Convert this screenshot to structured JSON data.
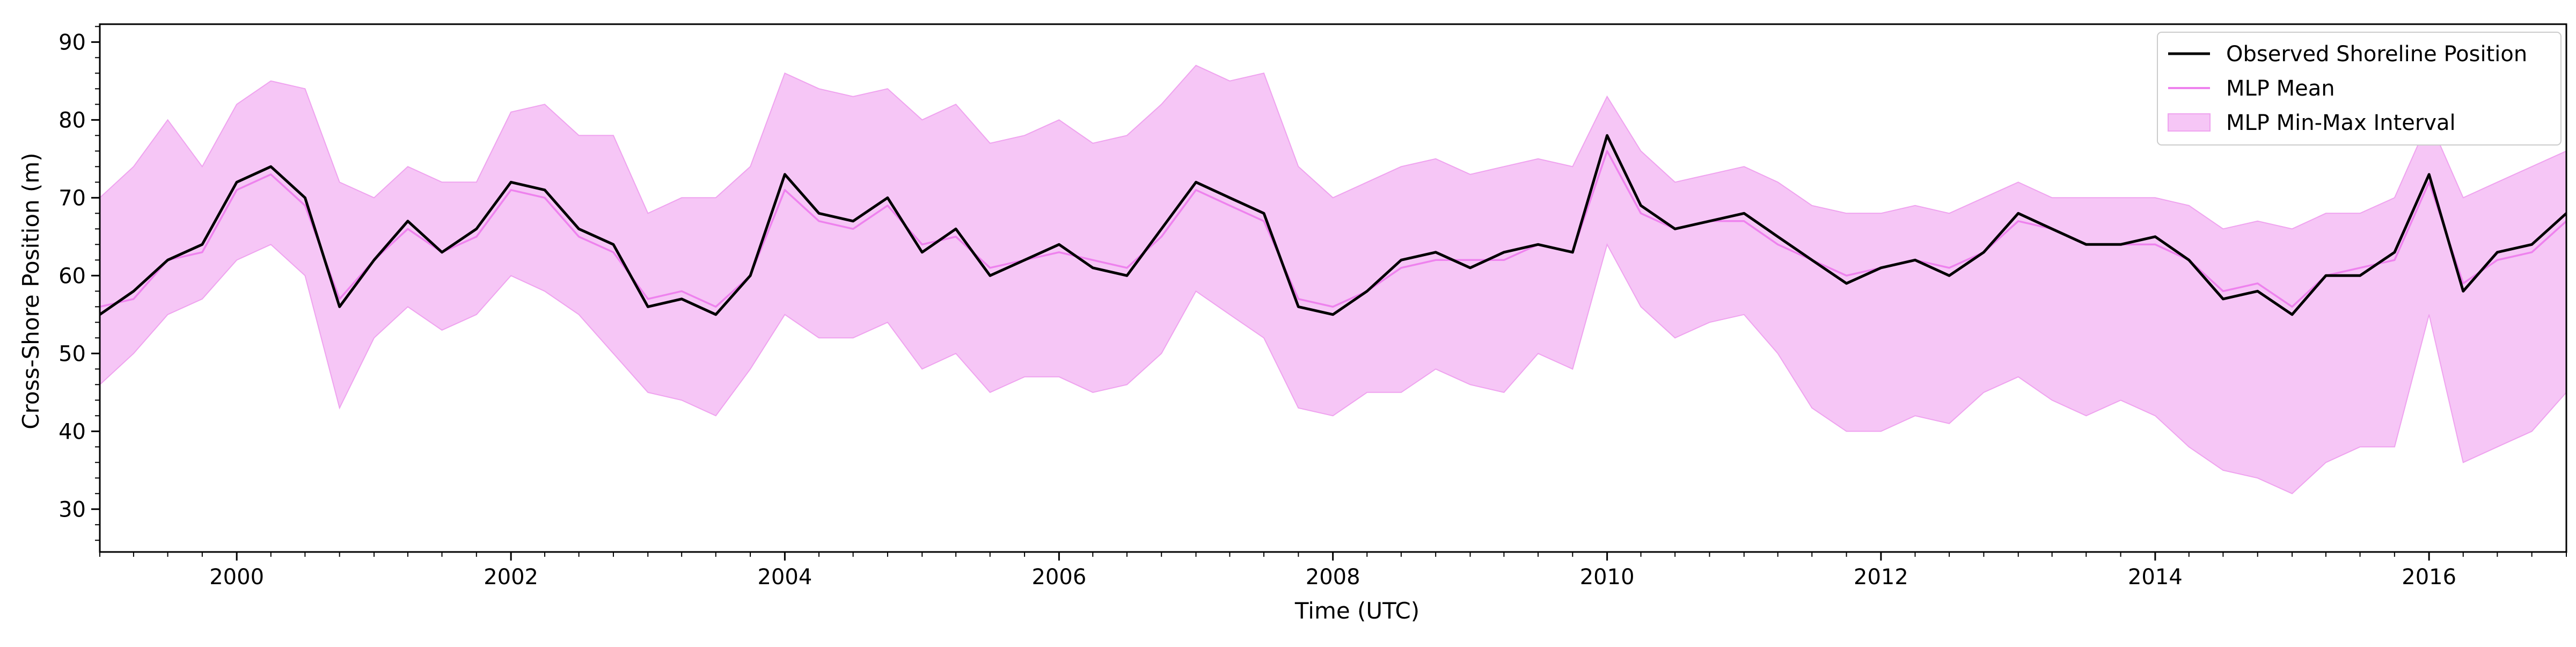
{
  "chart_data": {
    "type": "line",
    "xlabel": "Time (UTC)",
    "ylabel": "Cross-Shore Position (m)",
    "xlim": [
      "1999-01-01",
      "2017-01-01"
    ],
    "ylim": [
      24.5,
      92.3
    ],
    "x_ticks": [
      "2000",
      "2002",
      "2004",
      "2006",
      "2008",
      "2010",
      "2012",
      "2014",
      "2016"
    ],
    "y_ticks": [
      "30",
      "40",
      "50",
      "60",
      "70",
      "80",
      "90"
    ],
    "grid": false,
    "legend_position": "upper right",
    "legend": [
      "Observed Shoreline Position",
      "MLP Mean",
      "MLP Min-Max Interval"
    ],
    "colors": {
      "observed": "#000000",
      "mlp_mean": "#ee82ee",
      "interval_fill": "#f6c6f6",
      "interval_edge": "#efa3ef"
    },
    "dates": [
      "1999-01",
      "1999-04",
      "1999-07",
      "1999-10",
      "2000-01",
      "2000-04",
      "2000-07",
      "2000-10",
      "2001-01",
      "2001-04",
      "2001-07",
      "2001-10",
      "2002-01",
      "2002-04",
      "2002-07",
      "2002-10",
      "2003-01",
      "2003-04",
      "2003-07",
      "2003-10",
      "2004-01",
      "2004-04",
      "2004-07",
      "2004-10",
      "2005-01",
      "2005-04",
      "2005-07",
      "2005-10",
      "2006-01",
      "2006-04",
      "2006-07",
      "2006-10",
      "2007-01",
      "2007-04",
      "2007-07",
      "2007-10",
      "2008-01",
      "2008-04",
      "2008-07",
      "2008-10",
      "2009-01",
      "2009-04",
      "2009-07",
      "2009-10",
      "2010-01",
      "2010-04",
      "2010-07",
      "2010-10",
      "2011-01",
      "2011-04",
      "2011-07",
      "2011-10",
      "2012-01",
      "2012-04",
      "2012-07",
      "2012-10",
      "2013-01",
      "2013-04",
      "2013-07",
      "2013-10",
      "2014-01",
      "2014-04",
      "2014-07",
      "2014-10",
      "2015-01",
      "2015-04",
      "2015-07",
      "2015-10",
      "2016-01",
      "2016-04",
      "2016-07",
      "2016-10",
      "2017-01"
    ],
    "series": [
      {
        "name": "Observed Shoreline Position",
        "values": [
          55,
          58,
          62,
          64,
          72,
          74,
          70,
          56,
          62,
          67,
          63,
          66,
          72,
          71,
          66,
          64,
          56,
          57,
          55,
          60,
          73,
          68,
          67,
          70,
          63,
          66,
          60,
          62,
          64,
          61,
          60,
          66,
          72,
          70,
          68,
          56,
          55,
          58,
          62,
          63,
          61,
          63,
          64,
          63,
          78,
          69,
          66,
          67,
          68,
          65,
          62,
          59,
          61,
          62,
          60,
          63,
          68,
          66,
          64,
          64,
          65,
          62,
          57,
          58,
          55,
          60,
          60,
          63,
          73,
          58,
          63,
          64,
          68
        ]
      },
      {
        "name": "MLP Mean",
        "values": [
          56,
          57,
          62,
          63,
          71,
          73,
          69,
          57,
          62,
          66,
          63,
          65,
          71,
          70,
          65,
          63,
          57,
          58,
          56,
          60,
          71,
          67,
          66,
          69,
          64,
          65,
          61,
          62,
          63,
          62,
          61,
          65,
          71,
          69,
          67,
          57,
          56,
          58,
          61,
          62,
          62,
          62,
          64,
          63,
          76,
          68,
          66,
          67,
          67,
          64,
          62,
          60,
          61,
          62,
          61,
          63,
          67,
          66,
          64,
          64,
          64,
          62,
          58,
          59,
          56,
          60,
          61,
          62,
          72,
          59,
          62,
          63,
          67
        ]
      },
      {
        "name": "MLP Min-Max Interval",
        "lower": [
          46,
          50,
          55,
          57,
          62,
          64,
          60,
          43,
          52,
          56,
          53,
          55,
          60,
          58,
          55,
          50,
          45,
          44,
          42,
          48,
          55,
          52,
          52,
          54,
          48,
          50,
          45,
          47,
          47,
          45,
          46,
          50,
          58,
          55,
          52,
          43,
          42,
          45,
          45,
          48,
          46,
          45,
          50,
          48,
          64,
          56,
          52,
          54,
          55,
          50,
          43,
          40,
          40,
          42,
          41,
          45,
          47,
          44,
          42,
          44,
          42,
          38,
          35,
          34,
          32,
          36,
          38,
          38,
          55,
          36,
          38,
          40,
          45
        ],
        "upper": [
          70,
          74,
          80,
          74,
          82,
          85,
          84,
          72,
          70,
          74,
          72,
          72,
          81,
          82,
          78,
          78,
          68,
          70,
          70,
          74,
          86,
          84,
          83,
          84,
          80,
          82,
          77,
          78,
          80,
          77,
          78,
          82,
          87,
          85,
          86,
          74,
          70,
          72,
          74,
          75,
          73,
          74,
          75,
          74,
          83,
          76,
          72,
          73,
          74,
          72,
          69,
          68,
          68,
          69,
          68,
          70,
          72,
          70,
          70,
          70,
          70,
          69,
          66,
          67,
          66,
          68,
          68,
          70,
          80,
          70,
          72,
          74,
          76
        ]
      }
    ]
  }
}
